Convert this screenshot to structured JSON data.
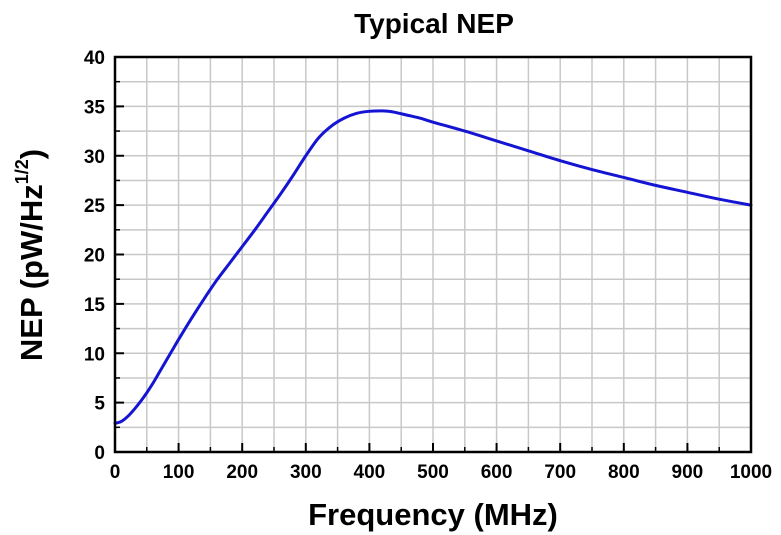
{
  "chart_data": {
    "type": "line",
    "title": "Typical NEP",
    "xlabel": "Frequency (MHz)",
    "ylabel": {
      "main": "NEP (pW/Hz",
      "superscript": "1/2",
      "close": ")"
    },
    "xlim": [
      0,
      1000
    ],
    "ylim": [
      0,
      40
    ],
    "xticks": [
      "0",
      "100",
      "200",
      "300",
      "400",
      "500",
      "600",
      "700",
      "800",
      "900",
      "1000"
    ],
    "yticks": [
      "0",
      "5",
      "10",
      "15",
      "20",
      "25",
      "30",
      "35",
      "40"
    ],
    "grid": true,
    "line_color": "#1414d2",
    "grid_color": "#c8c8c8",
    "series": [
      {
        "x": [
          0,
          10,
          20,
          30,
          40,
          50,
          60,
          70,
          80,
          90,
          100,
          120,
          140,
          160,
          180,
          200,
          220,
          240,
          260,
          280,
          300,
          320,
          340,
          360,
          380,
          400,
          420,
          430,
          440,
          460,
          480,
          500,
          550,
          600,
          650,
          700,
          750,
          800,
          850,
          900,
          950,
          1000
        ],
        "y": [
          2.9,
          3.1,
          3.6,
          4.3,
          5.1,
          6.0,
          7.0,
          8.1,
          9.2,
          10.3,
          11.4,
          13.5,
          15.5,
          17.4,
          19.1,
          20.8,
          22.5,
          24.3,
          26.1,
          28.0,
          30.0,
          31.8,
          33.0,
          33.8,
          34.3,
          34.5,
          34.55,
          34.5,
          34.4,
          34.1,
          33.8,
          33.4,
          32.5,
          31.5,
          30.5,
          29.5,
          28.6,
          27.8,
          27.0,
          26.3,
          25.6,
          25.0
        ]
      }
    ]
  }
}
